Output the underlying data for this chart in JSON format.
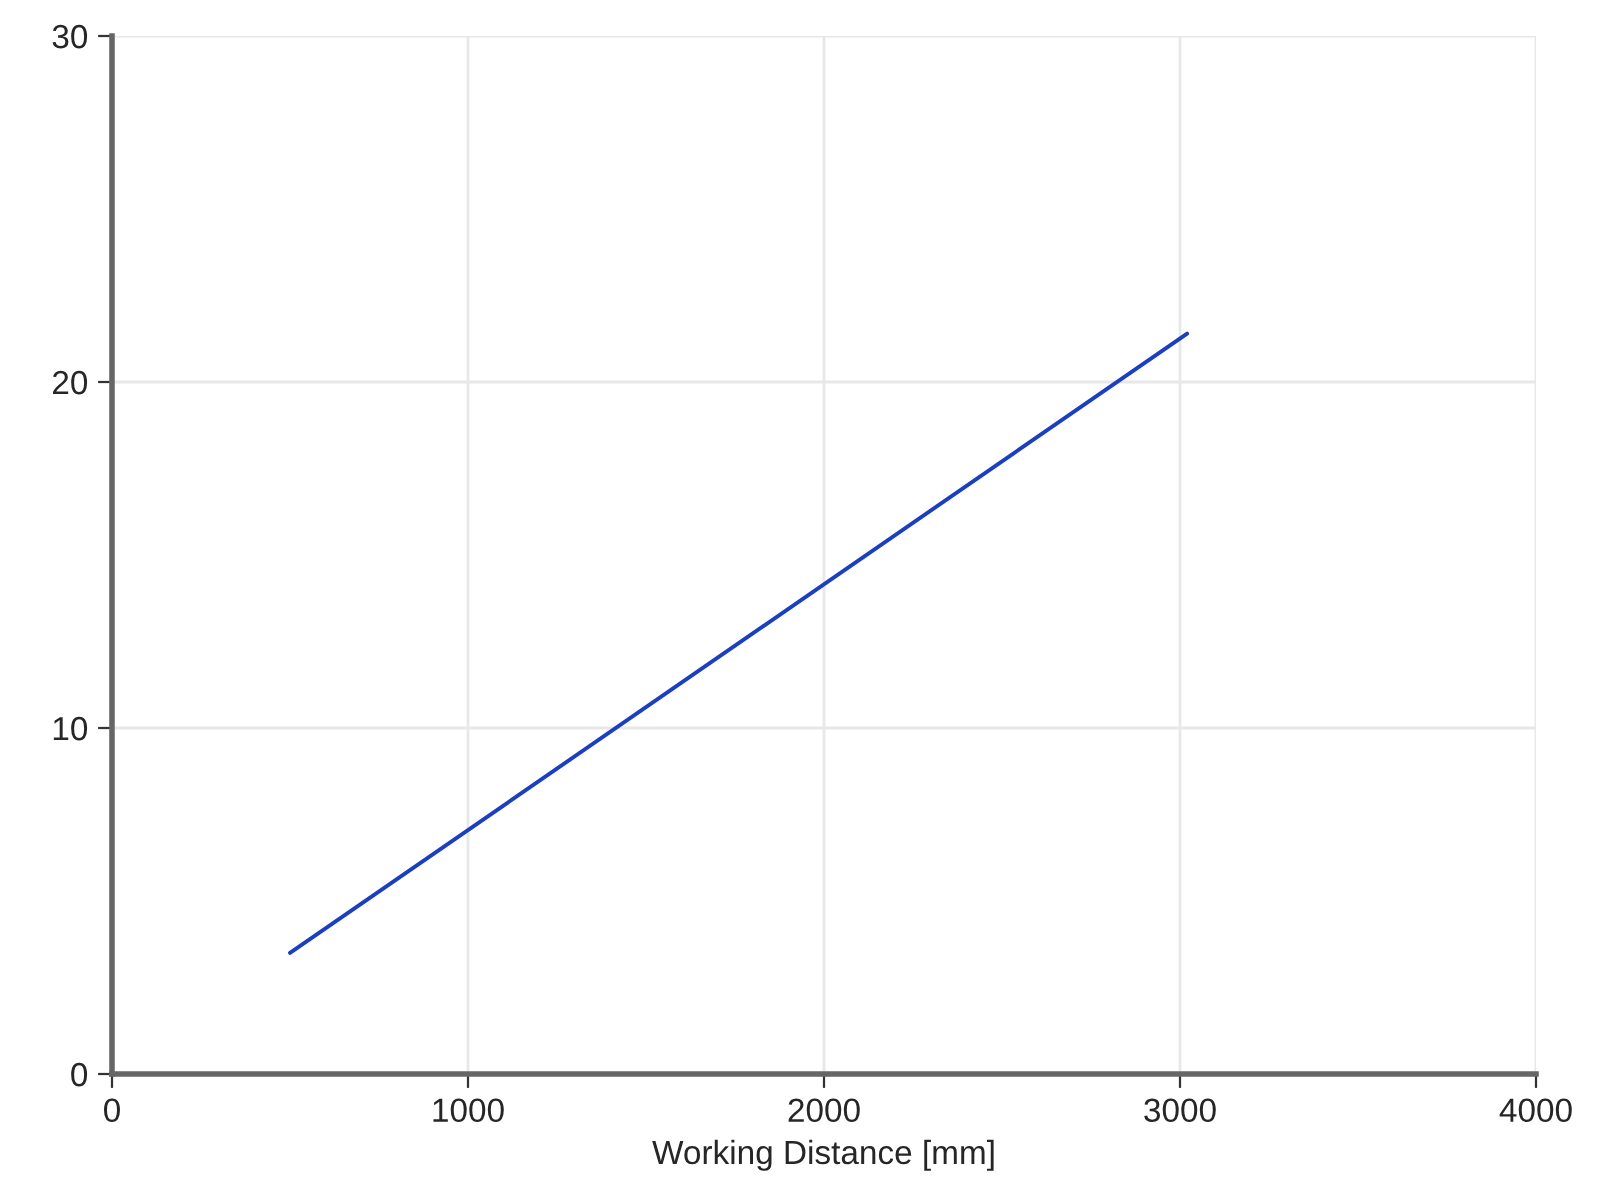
{
  "chart_data": {
    "type": "line",
    "xlabel": "Working Distance [mm]",
    "x": [
      500,
      3020
    ],
    "series": [
      {
        "color": "#1a3fbf",
        "values": [
          3.5,
          21.4
        ]
      }
    ],
    "xlim": [
      0,
      4000
    ],
    "xticks": [
      0,
      1000,
      2000,
      3000,
      4000
    ],
    "ylim": [
      0,
      30
    ],
    "yticks": [
      0,
      10,
      20,
      30
    ],
    "grid": true,
    "marker": "none",
    "line_style": "solid"
  }
}
